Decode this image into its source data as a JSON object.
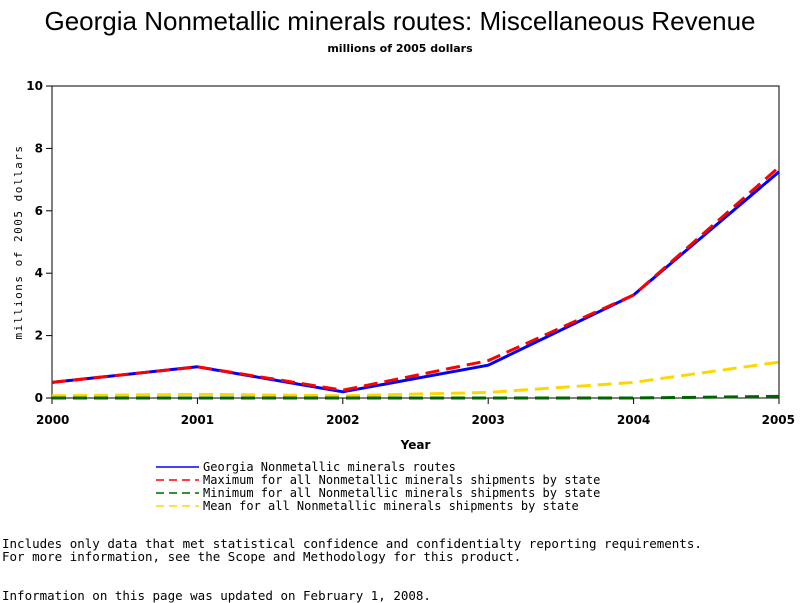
{
  "chart_data": {
    "type": "line",
    "title": "Georgia Nonmetallic minerals routes: Miscellaneous Revenue",
    "subtitle": "millions of 2005 dollars",
    "xlabel": "Year",
    "ylabel": "millions of 2005 dollars",
    "x": [
      "2000",
      "2001",
      "2002",
      "2003",
      "2004",
      "2005"
    ],
    "xlim": [
      2000,
      2005
    ],
    "ylim": [
      0,
      10
    ],
    "yticks": [
      "0",
      "2",
      "4",
      "6",
      "8",
      "10"
    ],
    "grid": false,
    "legend_position": "bottom",
    "series": [
      {
        "name": "Georgia Nonmetallic minerals routes",
        "values": [
          0.5,
          1.0,
          0.2,
          1.05,
          3.3,
          7.25
        ],
        "color": "#0000ff",
        "dash": "solid"
      },
      {
        "name": "Maximum for all Nonmetallic minerals shipments by state",
        "values": [
          0.5,
          1.0,
          0.25,
          1.2,
          3.3,
          7.4
        ],
        "color": "#ff0000",
        "dash": "dashed"
      },
      {
        "name": "Minimum for all Nonmetallic minerals shipments by state",
        "values": [
          0.0,
          0.0,
          0.0,
          0.0,
          0.0,
          0.05
        ],
        "color": "#006400",
        "dash": "dashed"
      },
      {
        "name": "Mean for all Nonmetallic minerals shipments by state",
        "values": [
          0.07,
          0.12,
          0.07,
          0.18,
          0.5,
          1.15
        ],
        "color": "#ffd700",
        "dash": "dashed"
      }
    ]
  },
  "notes": {
    "line1": "Includes only data that met statistical confidence and confidentialty reporting requirements.",
    "line2": "For more information, see the Scope and Methodology for this product.",
    "updated": "Information on this page was updated on February 1, 2008."
  }
}
